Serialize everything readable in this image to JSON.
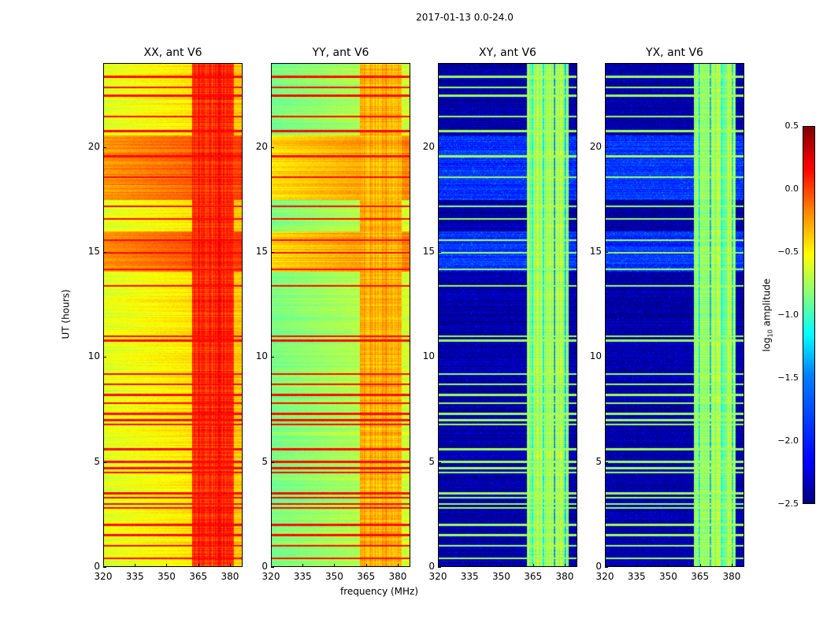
{
  "title": "2017-01-13 0.0-24.0",
  "chart_data": {
    "type": "heatmap",
    "title": "2017-01-13 0.0-24.0",
    "xlabel": "frequency (MHz)",
    "ylabel": "UT (hours)",
    "xlim": [
      320,
      386
    ],
    "ylim": [
      0,
      24
    ],
    "xticks": [
      "320",
      "335",
      "350",
      "365",
      "380"
    ],
    "yticks": [
      "0",
      "5",
      "10",
      "15",
      "20"
    ],
    "colormap": "jet",
    "colorbar": {
      "label_main": "log",
      "label_sub": "10",
      "label_rest": " amplitude",
      "range": [
        -2.5,
        0.5
      ],
      "ticks": [
        "0.5",
        "0.0",
        "−0.5",
        "−1.0",
        "−1.5",
        "−2.0",
        "−2.5"
      ]
    },
    "rfi_band_hours": [
      0.4,
      1.0,
      1.5,
      2.0,
      2.8,
      3.0,
      3.3,
      3.5,
      4.5,
      4.7,
      5.0,
      5.6,
      6.8,
      7.0,
      7.3,
      7.8,
      8.2,
      8.7,
      9.2,
      10.8,
      11.0,
      13.4,
      14.2,
      15.0,
      15.6,
      16.6,
      17.2,
      18.6,
      19.6,
      20.8,
      21.5,
      22.5,
      22.9,
      23.4
    ],
    "panels": [
      {
        "title": "XX, ant V6",
        "low_band_level": -0.6,
        "high_band_level": 0.0,
        "elevated_hours": [
          [
            14.1,
            16.0
          ],
          [
            17.5,
            20.6
          ]
        ],
        "elevated_level": -0.2,
        "band_line_level": 0.1
      },
      {
        "title": "YY, ant V6",
        "low_band_level": -0.9,
        "high_band_level": -0.4,
        "elevated_hours": [
          [
            14.1,
            16.0
          ],
          [
            17.5,
            20.6
          ]
        ],
        "elevated_level": -0.4,
        "band_line_level": 0.1
      },
      {
        "title": "XY, ant V6",
        "low_band_level": -2.4,
        "high_band_level": -0.9,
        "elevated_hours": [
          [
            14.1,
            16.0
          ],
          [
            17.5,
            20.6
          ]
        ],
        "elevated_level": -2.0,
        "band_line_level": -0.9
      },
      {
        "title": "YX, ant V6",
        "low_band_level": -2.4,
        "high_band_level": -0.9,
        "elevated_hours": [
          [
            14.1,
            16.0
          ],
          [
            17.5,
            20.6
          ]
        ],
        "elevated_level": -2.0,
        "band_line_level": -0.9
      }
    ],
    "high_band_mhz": [
      362,
      382
    ]
  }
}
